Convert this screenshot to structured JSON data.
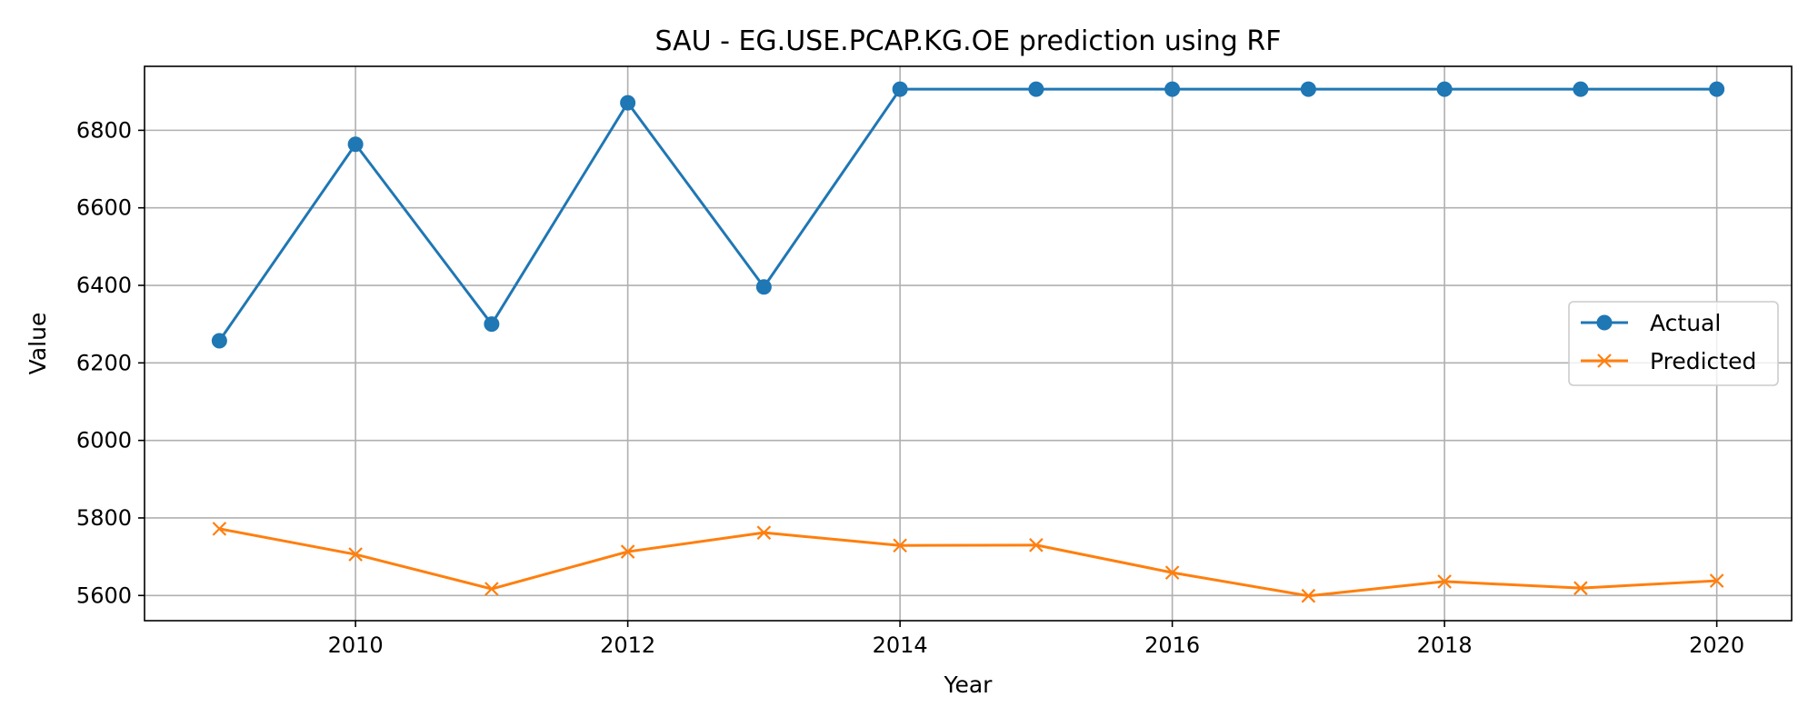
{
  "chart_data": {
    "type": "line",
    "title": "SAU - EG.USE.PCAP.KG.OE prediction using RF",
    "xlabel": "Year",
    "ylabel": "Value",
    "x": [
      2009,
      2010,
      2011,
      2012,
      2013,
      2014,
      2015,
      2016,
      2017,
      2018,
      2019,
      2020
    ],
    "xlim": [
      2008.45,
      2020.55
    ],
    "ylim": [
      5535,
      6965
    ],
    "xticks": [
      2010,
      2012,
      2014,
      2016,
      2018,
      2020
    ],
    "yticks": [
      5600,
      5800,
      6000,
      6200,
      6400,
      6600,
      6800
    ],
    "grid": true,
    "legend_position": "center-right",
    "series": [
      {
        "name": "Actual",
        "color": "#1f77b4",
        "marker": "circle",
        "values": [
          6257,
          6764,
          6300,
          6871,
          6396,
          6906,
          6906,
          6906,
          6906,
          6906,
          6906,
          6906
        ]
      },
      {
        "name": "Predicted",
        "color": "#ff7f0e",
        "marker": "x",
        "values": [
          5772,
          5706,
          5617,
          5713,
          5762,
          5729,
          5730,
          5659,
          5599,
          5636,
          5619,
          5638
        ]
      }
    ]
  }
}
